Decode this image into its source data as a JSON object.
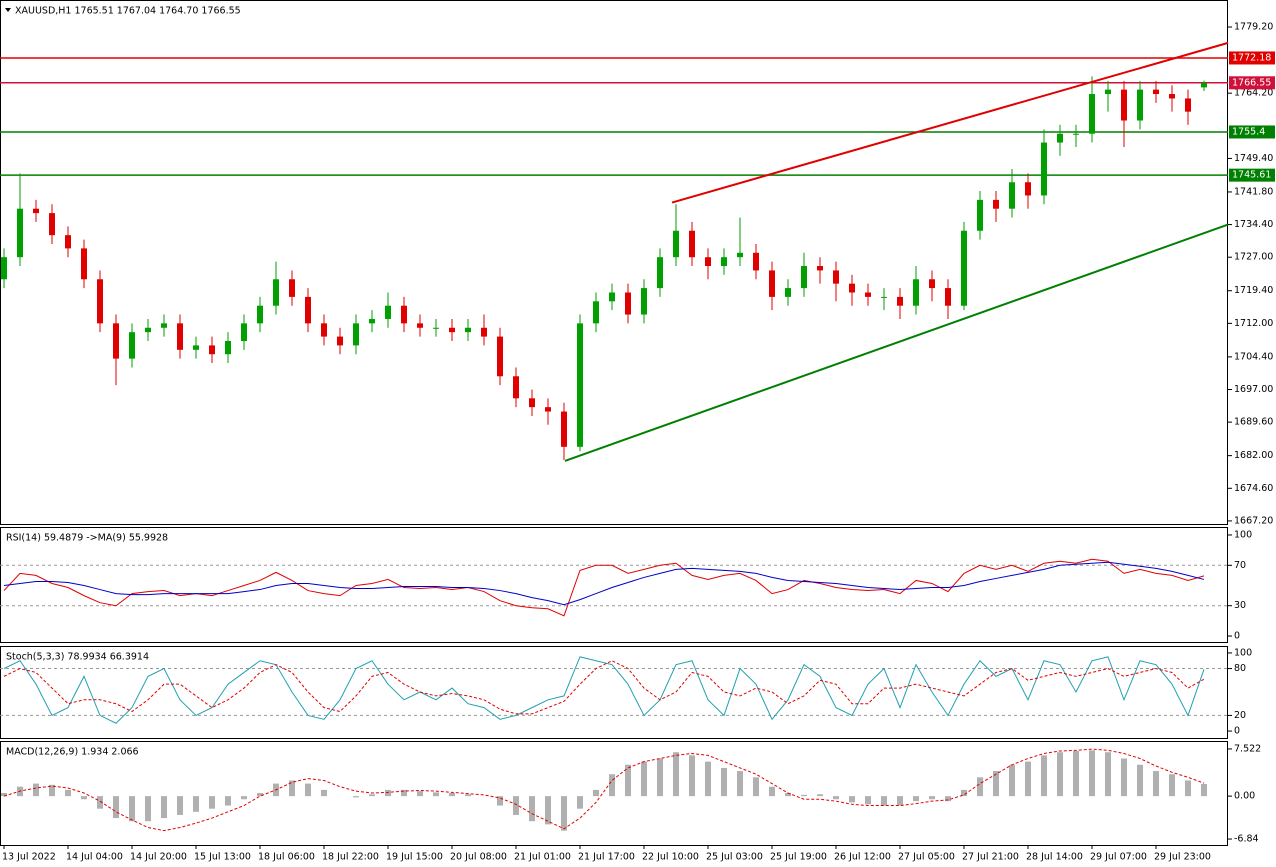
{
  "chart_data": [
    {
      "type": "candlestick",
      "title": "XAUUSD,H1  1765.51 1767.04 1764.70 1766.55",
      "categories": [
        "13 Jul 2022",
        null,
        null,
        null,
        "14 Jul 04:00",
        null,
        null,
        null,
        "14 Jul 20:00",
        null,
        null,
        null,
        "15 Jul 13:00",
        null,
        null,
        null,
        "18 Jul 06:00",
        null,
        null,
        null,
        "18 Jul 22:00",
        null,
        null,
        null,
        "19 Jul 15:00",
        null,
        null,
        null,
        "20 Jul 08:00",
        null,
        null,
        null,
        "21 Jul 01:00",
        null,
        null,
        null,
        "21 Jul 17:00",
        null,
        null,
        null,
        "22 Jul 10:00",
        null,
        null,
        null,
        "25 Jul 03:00",
        null,
        null,
        null,
        "25 Jul 19:00",
        null,
        null,
        null,
        "26 Jul 12:00",
        null,
        null,
        null,
        "27 Jul 05:00",
        null,
        null,
        null,
        "27 Jul 21:00",
        null,
        null,
        null,
        "28 Jul 14:00",
        null,
        null,
        null,
        "29 Jul 07:00",
        null,
        null,
        null,
        "29 Jul 23:00",
        null,
        null,
        null
      ],
      "open": [
        1722,
        1727,
        1738,
        1737,
        1732,
        1729,
        1722,
        1712,
        1704,
        1710,
        1711,
        1712,
        1706,
        1707,
        1705,
        1708,
        1712,
        1716,
        1722,
        1718,
        1712,
        1709,
        1707,
        1712,
        1713,
        1716,
        1712,
        1711,
        1711,
        1710,
        1711,
        1709,
        1700,
        1695,
        1693,
        1692,
        1684,
        1712,
        1717,
        1719,
        1714,
        1720,
        1727,
        1733,
        1727,
        1725,
        1727,
        1728,
        1724,
        1718,
        1720,
        1725,
        1724,
        1721,
        1719,
        1718,
        1718,
        1716,
        1722,
        1720,
        1716,
        1733,
        1740,
        1738,
        1744,
        1741,
        1753,
        1755,
        1755,
        1764,
        1765,
        1758,
        1765,
        1764,
        1763,
        1765.51
      ],
      "high": [
        1729,
        1746,
        1740,
        1739,
        1734,
        1731,
        1724,
        1714,
        1712,
        1713,
        1714,
        1714,
        1709,
        1709,
        1710,
        1714,
        1718,
        1726,
        1724,
        1720,
        1714,
        1711,
        1714,
        1715,
        1719,
        1718,
        1714,
        1713,
        1713,
        1713,
        1714,
        1711,
        1702,
        1697,
        1695,
        1694,
        1714,
        1719,
        1721,
        1721,
        1722,
        1729,
        1739,
        1735,
        1729,
        1729,
        1736,
        1730,
        1726,
        1722,
        1728,
        1727,
        1726,
        1723,
        1721,
        1720,
        1720,
        1725,
        1724,
        1722,
        1735,
        1742,
        1742,
        1747,
        1746,
        1756,
        1757,
        1757,
        1768,
        1767,
        1767,
        1767,
        1767,
        1766,
        1765,
        1767.04
      ],
      "low": [
        1720,
        1725,
        1735,
        1730,
        1727,
        1720,
        1710,
        1698,
        1702,
        1708,
        1709,
        1704,
        1704,
        1703,
        1703,
        1706,
        1710,
        1714,
        1716,
        1710,
        1707,
        1705,
        1705,
        1710,
        1711,
        1710,
        1709,
        1709,
        1708,
        1708,
        1707,
        1698,
        1693,
        1691,
        1689,
        1681,
        1683,
        1710,
        1715,
        1712,
        1712,
        1718,
        1725,
        1725,
        1722,
        1723,
        1725,
        1722,
        1715,
        1716,
        1718,
        1721,
        1717,
        1716,
        1716,
        1715,
        1713,
        1714,
        1717,
        1713,
        1715,
        1731,
        1735,
        1736,
        1738,
        1739,
        1750,
        1752,
        1753,
        1760,
        1752,
        1756,
        1762,
        1760,
        1757,
        1764.7
      ],
      "close": [
        1727,
        1738,
        1737,
        1732,
        1729,
        1722,
        1712,
        1704,
        1710,
        1711,
        1712,
        1706,
        1707,
        1705,
        1708,
        1712,
        1716,
        1722,
        1718,
        1712,
        1709,
        1707,
        1712,
        1713,
        1716,
        1712,
        1711,
        1711,
        1710,
        1711,
        1709,
        1700,
        1695,
        1693,
        1692,
        1684,
        1712,
        1717,
        1719,
        1714,
        1720,
        1727,
        1733,
        1727,
        1725,
        1727,
        1728,
        1724,
        1718,
        1720,
        1725,
        1724,
        1721,
        1719,
        1718,
        1718,
        1716,
        1722,
        1720,
        1716,
        1733,
        1740,
        1738,
        1744,
        1741,
        1753,
        1755,
        1755,
        1764,
        1765,
        1758,
        1765,
        1764,
        1763,
        1760,
        1766.55
      ],
      "up_color": "#00a000",
      "down_color": "#e00000",
      "ylim": [
        1666.5,
        1785.1
      ],
      "yticks": [
        {
          "value": 1779.2,
          "label": "1779.20"
        },
        {
          "value": 1764.2,
          "label": "1764.20"
        },
        {
          "value": 1749.4,
          "label": "1749.40"
        },
        {
          "value": 1741.8,
          "label": "1741.80"
        },
        {
          "value": 1734.4,
          "label": "1734.40"
        },
        {
          "value": 1727,
          "label": "1727.00"
        },
        {
          "value": 1719.4,
          "label": "1719.40"
        },
        {
          "value": 1712,
          "label": "1712.00"
        },
        {
          "value": 1704.4,
          "label": "1704.40"
        },
        {
          "value": 1697,
          "label": "1697.00"
        },
        {
          "value": 1689.6,
          "label": "1689.60"
        },
        {
          "value": 1682,
          "label": "1682.00"
        },
        {
          "value": 1674.6,
          "label": "1674.60"
        },
        {
          "value": 1667.2,
          "label": "1667.20"
        }
      ],
      "levels": [
        {
          "value": 1772.18,
          "color": "#e00000"
        },
        {
          "value": 1766.55,
          "color": "#d0103a"
        },
        {
          "value": 1755.4,
          "color": "#008000"
        },
        {
          "value": 1745.61,
          "color": "#008000"
        }
      ],
      "trendlines": [
        {
          "x": [
            41.75,
            76.5
          ],
          "y": [
            1739.4,
            1775.6
          ],
          "color": "#e00000"
        },
        {
          "x": [
            35.06,
            76.5
          ],
          "y": [
            1680.8,
            1734.4
          ],
          "color": "#008000"
        }
      ]
    },
    {
      "type": "line",
      "title": "RSI(14) 59.4879  ->MA(9) 55.9928",
      "series": [
        {
          "color": "#e00000",
          "values": [
            45,
            62,
            60,
            52,
            48,
            40,
            33,
            30,
            42,
            44,
            45,
            40,
            42,
            40,
            45,
            50,
            55,
            63,
            55,
            45,
            42,
            40,
            50,
            52,
            56,
            48,
            47,
            48,
            46,
            48,
            44,
            35,
            30,
            28,
            27,
            20,
            65,
            70,
            70,
            62,
            66,
            70,
            72,
            60,
            56,
            60,
            62,
            55,
            42,
            46,
            55,
            52,
            48,
            46,
            45,
            46,
            42,
            55,
            52,
            44,
            62,
            70,
            66,
            70,
            64,
            72,
            74,
            72,
            76,
            74,
            62,
            66,
            62,
            60,
            55,
            59.49
          ]
        },
        {
          "color": "#0000cc",
          "values": [
            50,
            52,
            54,
            54,
            53,
            50,
            46,
            42,
            41,
            41,
            42,
            42,
            42,
            42,
            42,
            44,
            46,
            50,
            52,
            52,
            50,
            48,
            47,
            47,
            48,
            49,
            49,
            49,
            48,
            48,
            47,
            45,
            42,
            38,
            35,
            31,
            36,
            42,
            48,
            53,
            58,
            62,
            66,
            67,
            66,
            65,
            64,
            62,
            58,
            55,
            54,
            53,
            52,
            50,
            48,
            47,
            46,
            47,
            48,
            48,
            50,
            54,
            57,
            60,
            63,
            66,
            70,
            71,
            72,
            73,
            71,
            69,
            67,
            64,
            60,
            55.99
          ]
        }
      ],
      "ylim": [
        -5.9,
        106.9
      ],
      "yticks": [
        100,
        70,
        30,
        0
      ],
      "levels": [
        70,
        30
      ]
    },
    {
      "type": "line",
      "title": "Stoch(5,3,3) 78.9934 66.3914",
      "series": [
        {
          "color": "#20a0b0",
          "values": [
            80,
            90,
            60,
            20,
            30,
            70,
            20,
            10,
            30,
            70,
            80,
            40,
            20,
            30,
            60,
            75,
            90,
            85,
            50,
            20,
            15,
            40,
            80,
            90,
            60,
            40,
            50,
            40,
            55,
            35,
            30,
            15,
            20,
            30,
            40,
            45,
            95,
            90,
            85,
            60,
            20,
            40,
            85,
            90,
            40,
            20,
            80,
            60,
            15,
            40,
            85,
            70,
            30,
            20,
            60,
            80,
            30,
            85,
            50,
            20,
            60,
            90,
            70,
            80,
            40,
            90,
            85,
            50,
            90,
            95,
            40,
            90,
            85,
            60,
            20,
            78.99
          ]
        },
        {
          "color": "#e00000",
          "dash": true,
          "values": [
            70,
            80,
            75,
            55,
            35,
            40,
            40,
            35,
            25,
            40,
            60,
            60,
            45,
            30,
            40,
            55,
            75,
            85,
            75,
            50,
            30,
            25,
            45,
            70,
            75,
            60,
            50,
            45,
            48,
            45,
            40,
            28,
            22,
            22,
            30,
            38,
            60,
            80,
            90,
            80,
            55,
            40,
            50,
            75,
            70,
            50,
            45,
            55,
            50,
            35,
            45,
            65,
            60,
            35,
            35,
            55,
            55,
            60,
            55,
            50,
            45,
            60,
            75,
            80,
            65,
            70,
            75,
            70,
            75,
            80,
            70,
            75,
            80,
            75,
            55,
            66.39
          ]
        }
      ],
      "ylim": [
        -8.9,
        107.6
      ],
      "yticks": [
        100,
        80,
        20,
        0
      ],
      "levels": [
        80,
        20
      ]
    },
    {
      "type": "macd",
      "title": "MACD(12,26,9) 1.934 2.066",
      "series": [
        {
          "color": "#b0b0b0",
          "style": "bar",
          "values": [
            0.5,
            1.5,
            2,
            1.8,
            1,
            -0.5,
            -2,
            -3.5,
            -4,
            -4,
            -3.5,
            -3,
            -2.5,
            -2,
            -1.5,
            -0.5,
            0.5,
            2,
            2.5,
            2,
            1,
            0,
            -0.2,
            0.3,
            1,
            1,
            0.8,
            0.6,
            0.5,
            0.3,
            0,
            -1.5,
            -3,
            -4,
            -4.5,
            -5.5,
            -2,
            1,
            3.5,
            5,
            5.5,
            6,
            7,
            6.5,
            5.5,
            4.5,
            4,
            3,
            1.5,
            0.5,
            0.2,
            0.3,
            -0.5,
            -1,
            -1.3,
            -1.5,
            -1.5,
            -0.8,
            -0.5,
            -0.8,
            1,
            3,
            4,
            5,
            5.5,
            6.5,
            7,
            7.2,
            7.3,
            7,
            6,
            5,
            4,
            3.5,
            2.5,
            1.934
          ]
        },
        {
          "color": "#e00000",
          "dash": true,
          "values": [
            0,
            0.8,
            1.3,
            1.6,
            1.3,
            0.5,
            -0.8,
            -2.5,
            -3.8,
            -5,
            -5.5,
            -5,
            -4.3,
            -3.5,
            -2.5,
            -1.5,
            0,
            1,
            2.2,
            2.8,
            2.5,
            1.5,
            0.8,
            0.5,
            0.6,
            0.8,
            0.9,
            0.8,
            0.6,
            0.4,
            0.2,
            -0.3,
            -1.3,
            -2.8,
            -4,
            -5.2,
            -3.5,
            -1,
            2.5,
            4.5,
            5.5,
            6,
            6.5,
            6.8,
            6.5,
            5.5,
            4.5,
            3.5,
            2,
            0.5,
            -0.5,
            -0.5,
            -0.8,
            -1.3,
            -1.5,
            -1.5,
            -1.5,
            -1.2,
            -0.8,
            -0.6,
            0.2,
            2,
            3.5,
            5,
            6,
            6.8,
            7.2,
            7.3,
            7.5,
            7.3,
            6.8,
            6,
            4.8,
            3.8,
            3,
            2.066
          ]
        }
      ],
      "ylim": [
        -7.79,
        8.63
      ],
      "yticks": [
        7.522,
        {
          "value": 0,
          "label": "0.00"
        },
        -6.84
      ]
    }
  ]
}
